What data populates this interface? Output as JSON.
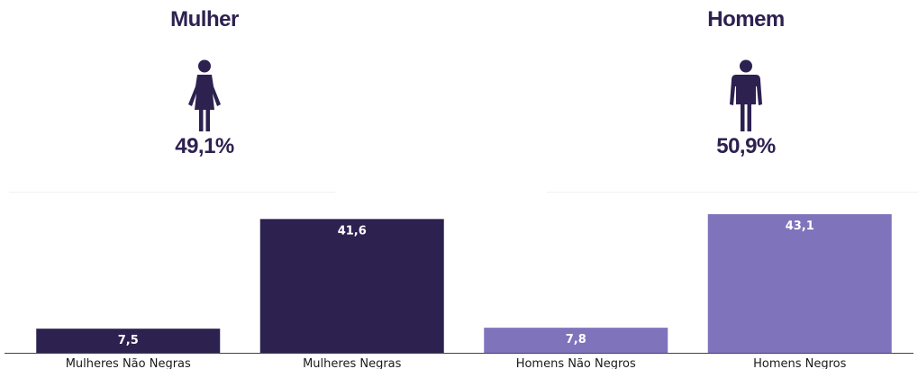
{
  "panels": {
    "women": {
      "title": "Mulher",
      "percent": "49,1%",
      "icon": "woman-icon",
      "color": "#2d2150"
    },
    "men": {
      "title": "Homem",
      "percent": "50,9%",
      "icon": "man-icon",
      "color": "#2d2150"
    }
  },
  "chart_data": {
    "type": "bar",
    "categories": [
      "Mulheres Não Negras",
      "Mulheres Negras",
      "Homens Não Negros",
      "Homens Negros"
    ],
    "values": [
      7.5,
      41.6,
      7.8,
      43.1
    ],
    "value_labels": [
      "7,5",
      "41,6",
      "7,8",
      "43,1"
    ],
    "colors": [
      "#2d2150",
      "#2d2150",
      "#7f74bc",
      "#7f74bc"
    ],
    "title": "",
    "xlabel": "",
    "ylabel": "",
    "ylim": [
      0,
      43.1
    ],
    "grid": false,
    "legend": "none"
  }
}
